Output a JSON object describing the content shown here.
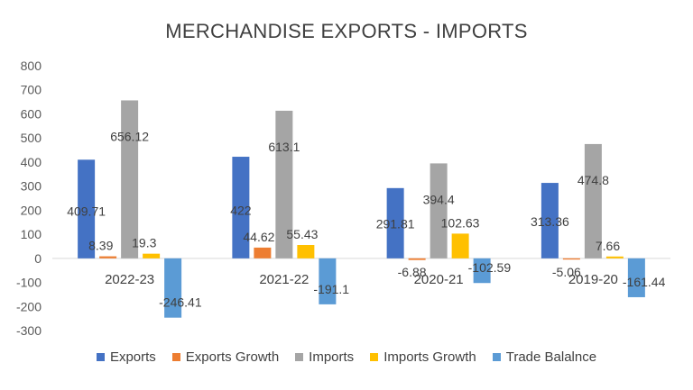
{
  "chart_data": {
    "type": "bar",
    "title": "MERCHANDISE EXPORTS - IMPORTS",
    "categories": [
      "2022-23",
      "2021-22",
      "2020-21",
      "2019-20"
    ],
    "series": [
      {
        "name": "Exports",
        "color": "#4472C4",
        "values": [
          409.71,
          422,
          291.81,
          313.36
        ],
        "labels": [
          "409.71",
          "422",
          "291.81",
          "313.36"
        ]
      },
      {
        "name": "Exports Growth",
        "color": "#ED7D31",
        "values": [
          8.39,
          44.62,
          -6.88,
          -5.06
        ],
        "labels": [
          "8.39",
          "44.62",
          "-6.88",
          "-5.06"
        ]
      },
      {
        "name": "Imports",
        "color": "#A5A5A5",
        "values": [
          656.12,
          613.1,
          394.4,
          474.8
        ],
        "labels": [
          "656.12",
          "613.1",
          "394.4",
          "474.8"
        ]
      },
      {
        "name": "Imports Growth",
        "color": "#FFC000",
        "values": [
          19.3,
          55.43,
          102.63,
          7.66
        ],
        "labels": [
          "19.3",
          "55.43",
          "102.63",
          "7.66"
        ]
      },
      {
        "name": "Trade Balalnce",
        "color": "#5B9BD5",
        "values": [
          -246.41,
          -191.1,
          -102.59,
          -161.44
        ],
        "labels": [
          "-246.41",
          "-191.1",
          "-102.59",
          "-161.44"
        ]
      }
    ],
    "ylim": [
      -300,
      800
    ],
    "yticks": [
      800,
      700,
      600,
      500,
      400,
      300,
      200,
      100,
      0,
      -100,
      -200,
      -300
    ],
    "grid": false,
    "legend": "bottom"
  }
}
